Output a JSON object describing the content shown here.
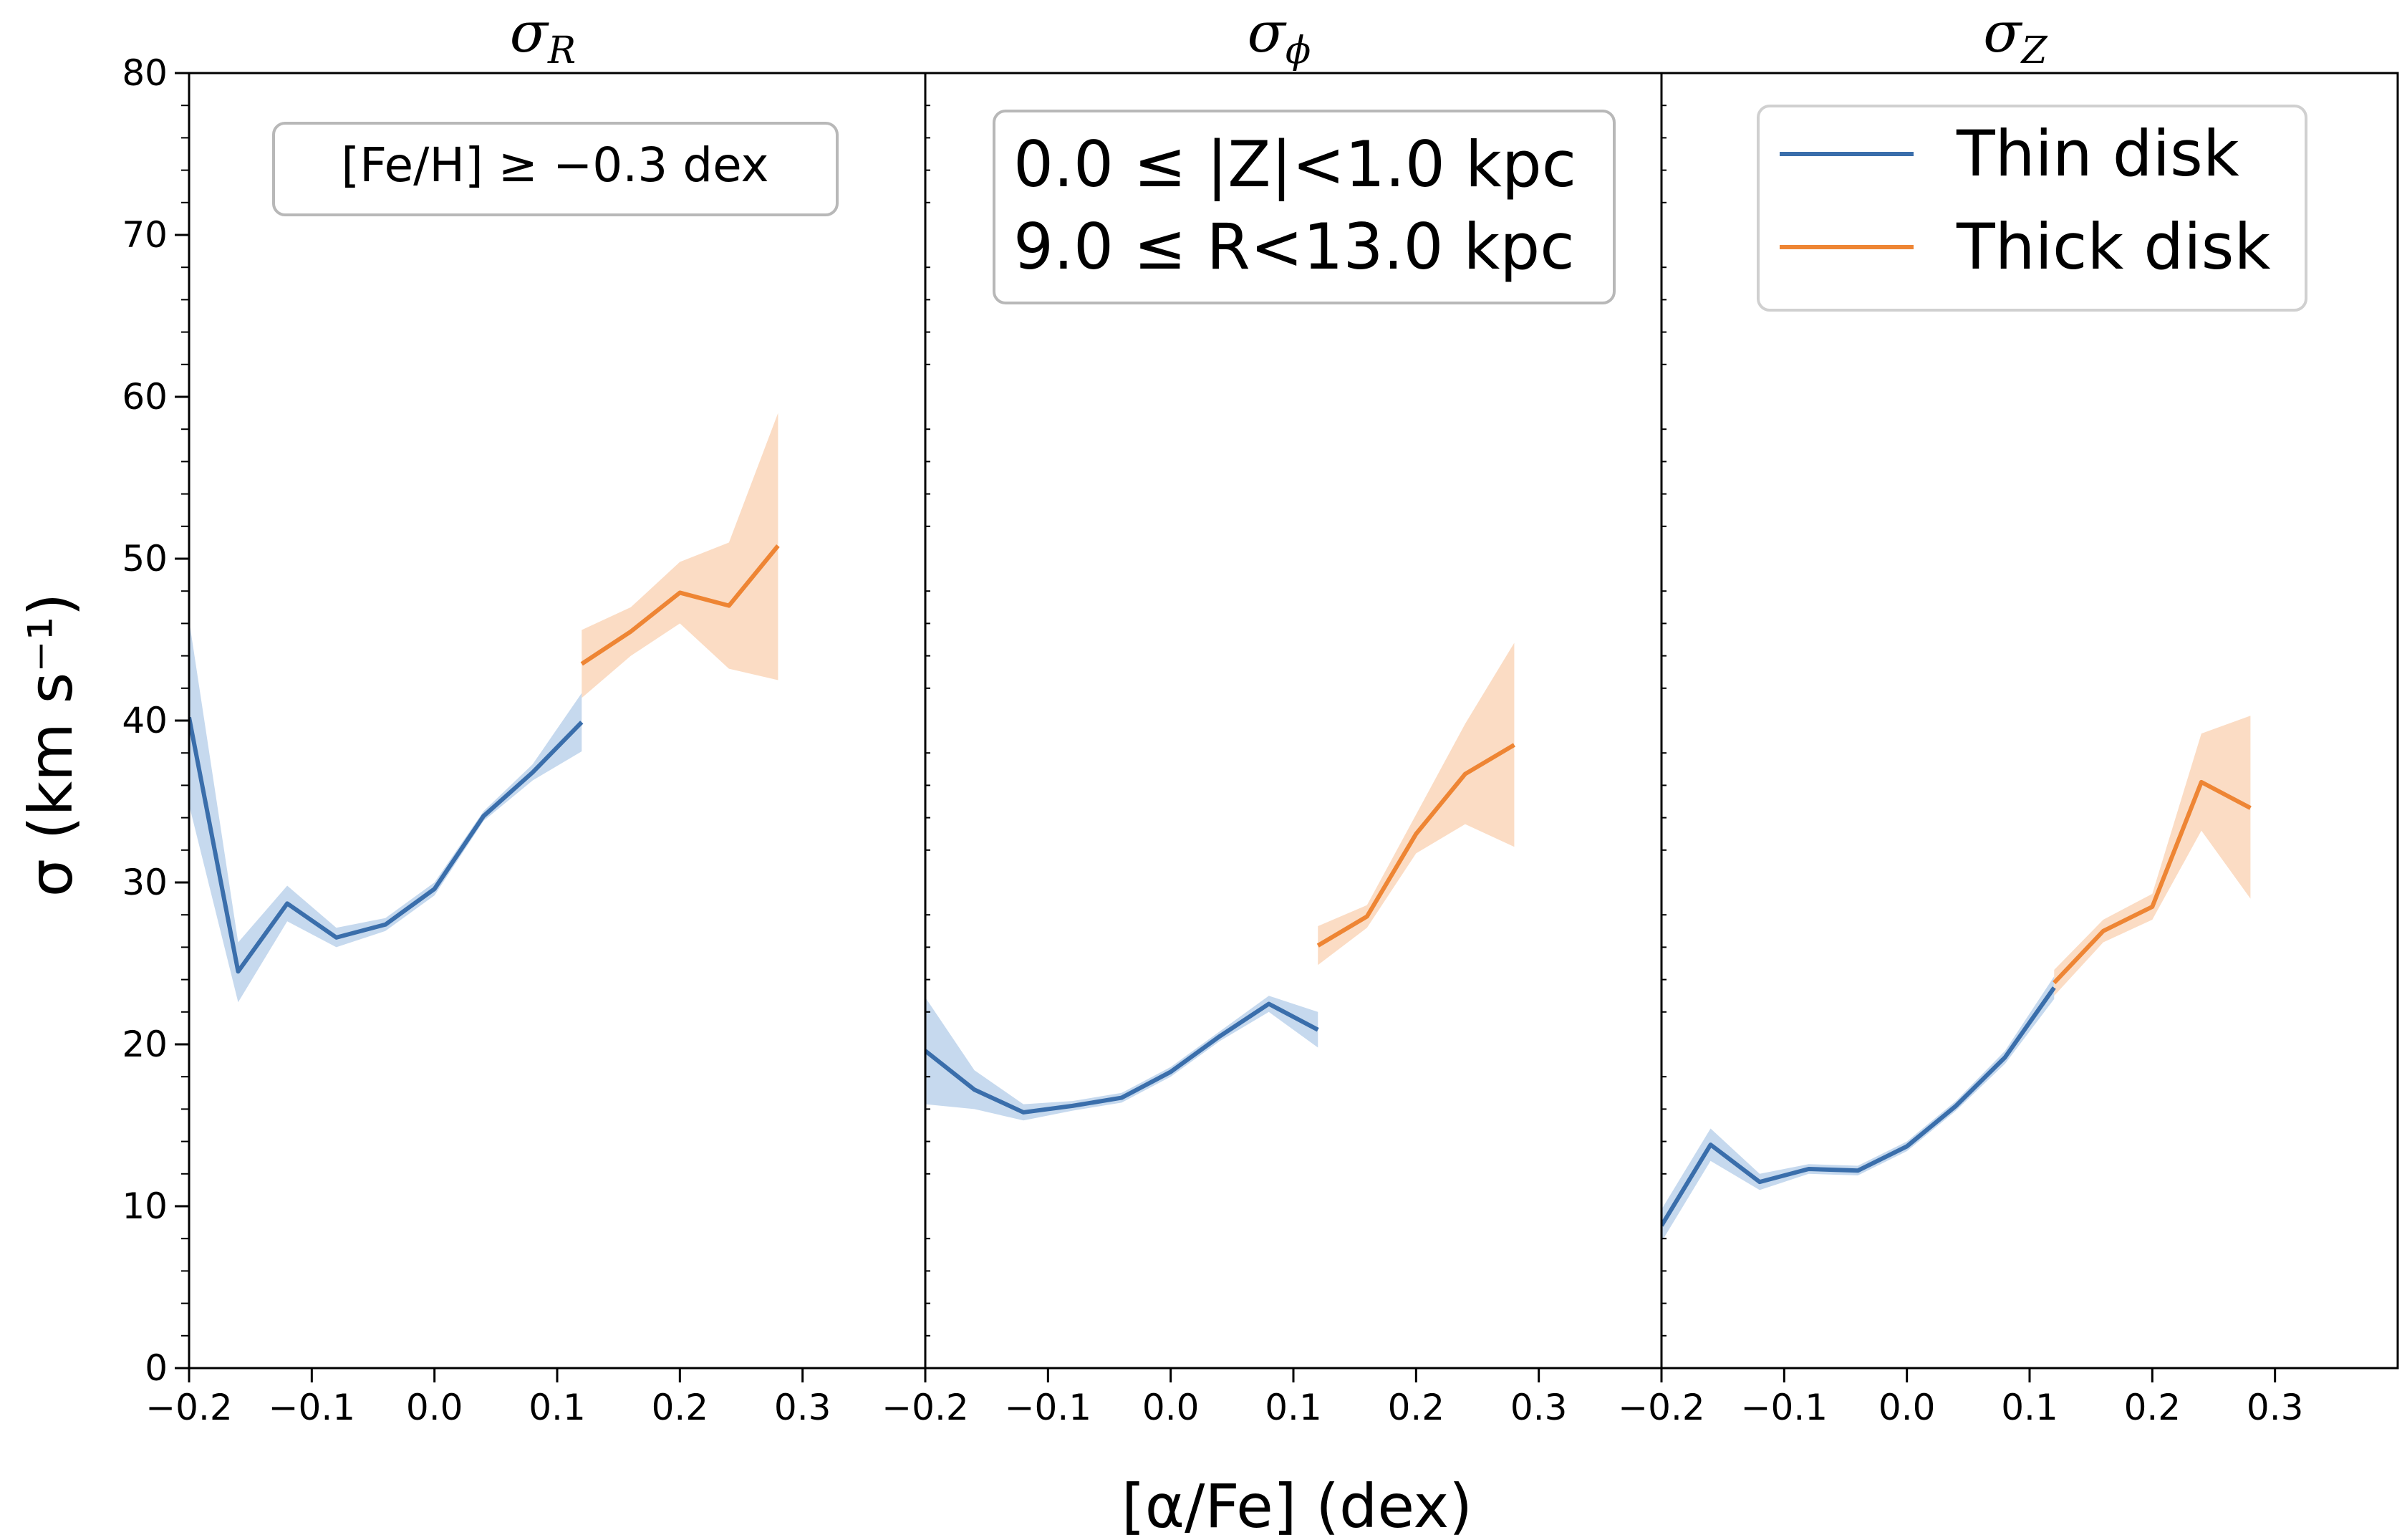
{
  "colors": {
    "thin": "#3a6eab",
    "thin_band": "#c6d9ee",
    "thick": "#ee8534",
    "thick_band": "#fbdcc4"
  },
  "annotations": {
    "feh": "[Fe/H] ≥ −0.3 dex",
    "z_range": "0.0 ≤ |Z|<1.0 kpc",
    "r_range": "9.0 ≤ R<13.0 kpc"
  },
  "chart_data": {
    "type": "line",
    "xlabel": "[α/Fe] (dex)",
    "ylabel": "σ (km s⁻¹)",
    "xlim": [
      -0.2,
      0.4
    ],
    "ylim": [
      0,
      80
    ],
    "xticks": [
      -0.2,
      -0.1,
      0.0,
      0.1,
      0.2,
      0.3
    ],
    "xtick_labels": [
      "−0.2",
      "−0.1",
      "0.0",
      "0.1",
      "0.2",
      "0.3"
    ],
    "yticks": [
      0,
      10,
      20,
      30,
      40,
      50,
      60,
      70,
      80
    ],
    "ytick_labels": [
      "0",
      "10",
      "20",
      "30",
      "40",
      "50",
      "60",
      "70",
      "80"
    ],
    "legend": {
      "position": "top-right of third panel",
      "entries": [
        "Thin disk",
        "Thick disk"
      ]
    },
    "panels": [
      {
        "title": "σ",
        "subscript": "R",
        "series": [
          {
            "name": "Thin disk",
            "x": [
              -0.2,
              -0.16,
              -0.12,
              -0.08,
              -0.04,
              0.0,
              0.04,
              0.08,
              0.12
            ],
            "y": [
              40.2,
              24.5,
              28.7,
              26.6,
              27.4,
              29.6,
              34.1,
              36.8,
              39.9
            ],
            "lower": [
              34.8,
              22.6,
              27.6,
              26.0,
              27.0,
              29.2,
              33.8,
              36.3,
              38.1
            ],
            "upper": [
              46.2,
              26.3,
              29.8,
              27.2,
              27.8,
              30.0,
              34.4,
              37.3,
              41.7
            ]
          },
          {
            "name": "Thick disk",
            "x": [
              0.12,
              0.16,
              0.2,
              0.24,
              0.28
            ],
            "y": [
              43.5,
              45.5,
              47.9,
              47.1,
              50.8
            ],
            "lower": [
              41.4,
              44.0,
              46.0,
              43.2,
              42.5
            ],
            "upper": [
              45.6,
              47.0,
              49.8,
              51.0,
              59.0
            ]
          }
        ]
      },
      {
        "title": "σ",
        "subscript": "ϕ",
        "series": [
          {
            "name": "Thin disk",
            "x": [
              -0.2,
              -0.16,
              -0.12,
              -0.08,
              -0.04,
              0.0,
              0.04,
              0.08,
              0.12
            ],
            "y": [
              19.6,
              17.2,
              15.8,
              16.2,
              16.7,
              18.3,
              20.5,
              22.5,
              20.9
            ],
            "lower": [
              16.3,
              16.0,
              15.3,
              15.9,
              16.4,
              18.0,
              20.2,
              22.0,
              19.8
            ],
            "upper": [
              22.9,
              18.4,
              16.3,
              16.5,
              17.0,
              18.6,
              20.8,
              23.0,
              22.0
            ]
          },
          {
            "name": "Thick disk",
            "x": [
              0.12,
              0.16,
              0.2,
              0.24,
              0.28
            ],
            "y": [
              26.1,
              27.9,
              33.0,
              36.7,
              38.5
            ],
            "lower": [
              24.9,
              27.2,
              31.8,
              33.6,
              32.2
            ],
            "upper": [
              27.3,
              28.6,
              34.2,
              39.8,
              44.8
            ]
          }
        ]
      },
      {
        "title": "σ",
        "subscript": "Z",
        "series": [
          {
            "name": "Thin disk",
            "x": [
              -0.2,
              -0.16,
              -0.12,
              -0.08,
              -0.04,
              0.0,
              0.04,
              0.08,
              0.12
            ],
            "y": [
              8.8,
              13.8,
              11.5,
              12.3,
              12.2,
              13.7,
              16.2,
              19.2,
              23.5
            ],
            "lower": [
              7.8,
              12.8,
              11.0,
              12.0,
              11.9,
              13.4,
              15.9,
              18.8,
              22.8
            ],
            "upper": [
              9.8,
              14.8,
              12.0,
              12.6,
              12.5,
              14.0,
              16.5,
              19.6,
              24.2
            ]
          },
          {
            "name": "Thick disk",
            "x": [
              0.12,
              0.16,
              0.2,
              0.24,
              0.28
            ],
            "y": [
              23.8,
              27.0,
              28.5,
              36.2,
              34.6
            ],
            "lower": [
              23.0,
              26.3,
              27.7,
              33.2,
              29.0
            ],
            "upper": [
              24.6,
              27.7,
              29.3,
              39.2,
              40.3
            ]
          }
        ]
      }
    ]
  }
}
